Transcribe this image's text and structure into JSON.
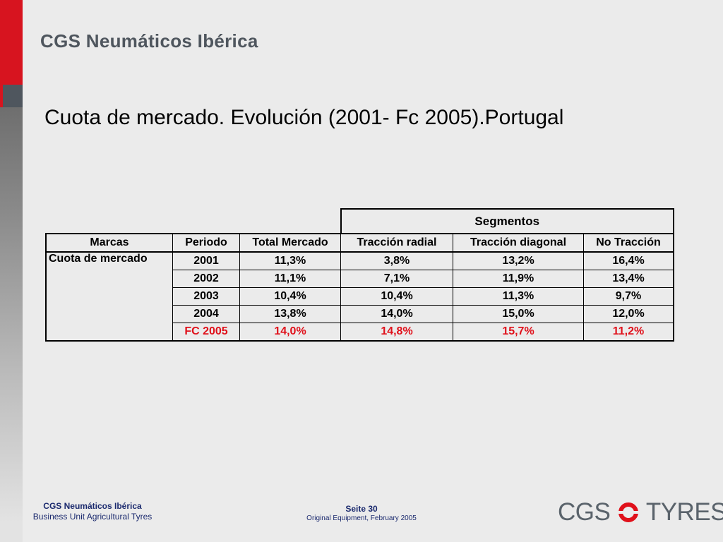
{
  "header": {
    "brand_title": "CGS Neumáticos Ibérica"
  },
  "slide": {
    "title": "Cuota de mercado. Evolución (2001- Fc 2005).Portugal"
  },
  "table": {
    "group_header": "Segmentos",
    "columns": [
      "Marcas",
      "Periodo",
      "Total Mercado",
      "Tracción  radial",
      "Tracción diagonal",
      "No Tracción"
    ],
    "brand_label": "Cuota de mercado",
    "rows": [
      {
        "period": "2001",
        "values": [
          "11,3%",
          "3,8%",
          "13,2%",
          "16,4%"
        ]
      },
      {
        "period": "2002",
        "values": [
          "11,1%",
          "7,1%",
          "11,9%",
          "13,4%"
        ]
      },
      {
        "period": "2003",
        "values": [
          "10,4%",
          "10,4%",
          "11,3%",
          "9,7%"
        ]
      },
      {
        "period": "2004",
        "values": [
          "13,8%",
          "14,0%",
          "15,0%",
          "12,0%"
        ]
      },
      {
        "period": "FC 2005",
        "values": [
          "14,0%",
          "14,8%",
          "15,7%",
          "11,2%"
        ]
      }
    ],
    "forecast_color": "#e0101a"
  },
  "footer": {
    "company": "CGS Neumáticos Ibérica",
    "business_unit": "Business Unit Agricultural Tyres",
    "page_label": "Seite 30",
    "subtitle": "Original Equipment, February 2005"
  },
  "logo": {
    "left_text": "CGS",
    "right_text": "TYRES",
    "accent_color": "#e0101a",
    "icon": "tyre-ring-icon"
  },
  "colors": {
    "brand_red": "#d7141f",
    "brand_grey": "#4f565e",
    "footer_blue": "#1b2a6e"
  }
}
